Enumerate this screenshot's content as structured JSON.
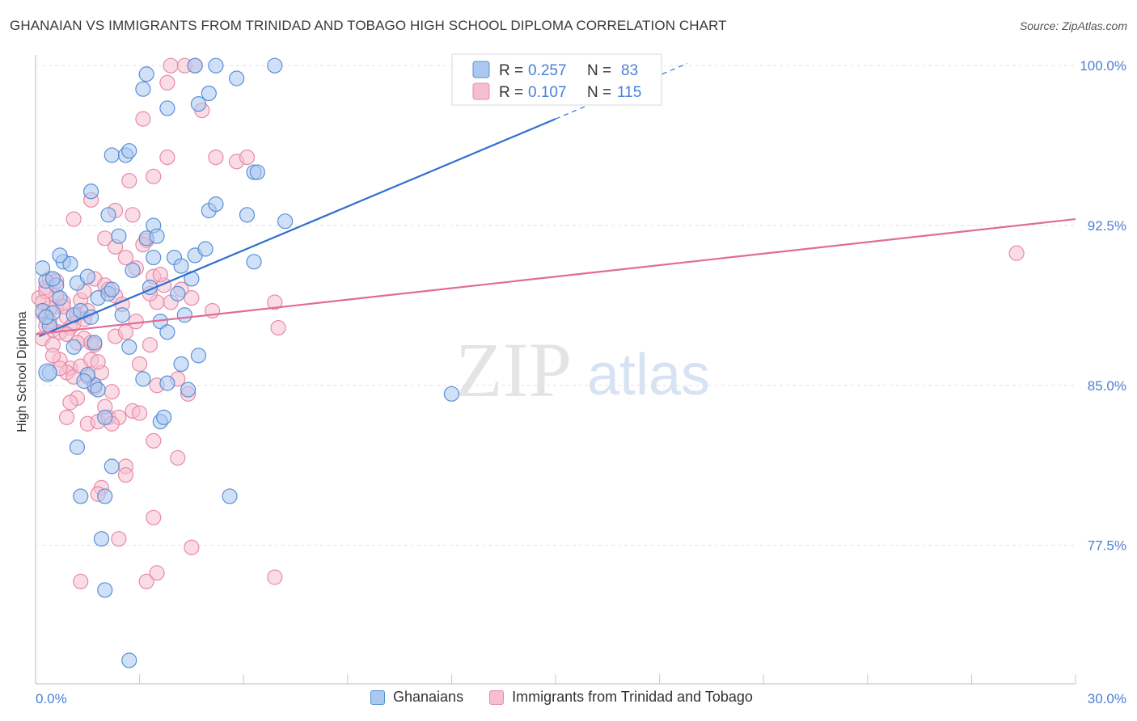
{
  "title": "GHANAIAN VS IMMIGRANTS FROM TRINIDAD AND TOBAGO HIGH SCHOOL DIPLOMA CORRELATION CHART",
  "source": "Source: ZipAtlas.com",
  "watermark": {
    "zip": "ZIP",
    "atlas": "atlas"
  },
  "colors": {
    "blue_fill": "#aac8f0",
    "blue_stroke": "#5a8fd6",
    "blue_line": "#2f6fd0",
    "pink_fill": "#f6bfd0",
    "pink_stroke": "#e88aa8",
    "pink_line": "#e06c98",
    "grid": "#e2e2e2",
    "axis_text": "#4a7fd4"
  },
  "legend_box": {
    "rows": [
      {
        "r_label": "R = ",
        "r_value": "0.257",
        "n_label": "N = ",
        "n_value": "83",
        "color": "blue"
      },
      {
        "r_label": "R = ",
        "r_value": "0.107",
        "n_label": "N = ",
        "n_value": "115",
        "color": "pink"
      }
    ]
  },
  "chart_data": {
    "type": "scatter",
    "title": "GHANAIAN VS IMMIGRANTS FROM TRINIDAD AND TOBAGO HIGH SCHOOL DIPLOMA CORRELATION CHART",
    "xlabel": "",
    "ylabel": "High School Diploma",
    "xlim": [
      0,
      30
    ],
    "ylim": [
      71,
      100.5
    ],
    "x_tick_labels": [
      "0.0%",
      "30.0%"
    ],
    "y_ticks": [
      77.5,
      85.0,
      92.5,
      100.0
    ],
    "y_tick_labels": [
      "77.5%",
      "85.0%",
      "92.5%",
      "100.0%"
    ],
    "legend": [
      "Ghanaians",
      "Immigrants from Trinidad and Tobago"
    ],
    "series": [
      {
        "name": "Ghanaians",
        "color": "blue",
        "trend": {
          "x0": 0.1,
          "y0": 87.3,
          "x1": 15.0,
          "y1": 97.5,
          "dash_to_x": 18.8,
          "dash_to_y": 100.1
        },
        "points": [
          [
            0.3,
            89.9
          ],
          [
            0.2,
            88.5
          ],
          [
            0.4,
            87.8
          ],
          [
            0.5,
            88.4
          ],
          [
            0.2,
            90.5
          ],
          [
            0.6,
            89.7
          ],
          [
            0.3,
            88.2
          ],
          [
            0.7,
            89.1
          ],
          [
            0.4,
            85.6
          ],
          [
            0.8,
            90.8
          ],
          [
            1.0,
            90.7
          ],
          [
            0.5,
            90.0
          ],
          [
            1.1,
            88.3
          ],
          [
            1.2,
            89.8
          ],
          [
            0.7,
            91.1
          ],
          [
            1.5,
            90.1
          ],
          [
            1.1,
            86.8
          ],
          [
            1.3,
            88.5
          ],
          [
            1.6,
            88.2
          ],
          [
            1.8,
            89.1
          ],
          [
            2.1,
            89.3
          ],
          [
            2.5,
            88.3
          ],
          [
            2.7,
            86.8
          ],
          [
            2.4,
            92.0
          ],
          [
            3.2,
            91.9
          ],
          [
            2.8,
            90.4
          ],
          [
            3.3,
            89.6
          ],
          [
            3.4,
            92.5
          ],
          [
            3.5,
            92.0
          ],
          [
            3.4,
            91.0
          ],
          [
            4.0,
            91.0
          ],
          [
            4.2,
            90.6
          ],
          [
            4.3,
            88.3
          ],
          [
            4.1,
            89.3
          ],
          [
            3.6,
            88.0
          ],
          [
            3.8,
            87.5
          ],
          [
            4.5,
            90.0
          ],
          [
            4.6,
            91.1
          ],
          [
            4.9,
            91.4
          ],
          [
            5.0,
            93.2
          ],
          [
            5.2,
            93.5
          ],
          [
            6.1,
            93.0
          ],
          [
            6.3,
            90.8
          ],
          [
            7.2,
            92.7
          ],
          [
            6.3,
            95.0
          ],
          [
            6.4,
            95.0
          ],
          [
            2.2,
            95.8
          ],
          [
            2.6,
            95.8
          ],
          [
            2.7,
            96.0
          ],
          [
            3.1,
            98.9
          ],
          [
            3.2,
            99.6
          ],
          [
            3.8,
            98.0
          ],
          [
            4.7,
            98.2
          ],
          [
            5.0,
            98.7
          ],
          [
            5.2,
            100.0
          ],
          [
            4.6,
            100.0
          ],
          [
            5.8,
            99.4
          ],
          [
            6.9,
            100.0
          ],
          [
            1.6,
            94.1
          ],
          [
            2.1,
            93.0
          ],
          [
            1.7,
            85.0
          ],
          [
            1.5,
            85.5
          ],
          [
            1.4,
            85.2
          ],
          [
            1.8,
            84.8
          ],
          [
            3.1,
            85.3
          ],
          [
            3.8,
            85.1
          ],
          [
            4.2,
            86.0
          ],
          [
            4.4,
            84.8
          ],
          [
            4.7,
            86.4
          ],
          [
            3.6,
            83.3
          ],
          [
            3.7,
            83.5
          ],
          [
            2.0,
            83.5
          ],
          [
            1.2,
            82.1
          ],
          [
            2.2,
            81.2
          ],
          [
            1.3,
            79.8
          ],
          [
            2.0,
            79.8
          ],
          [
            5.6,
            79.8
          ],
          [
            1.9,
            77.8
          ],
          [
            2.0,
            75.4
          ],
          [
            2.7,
            72.1
          ],
          [
            1.7,
            87.0
          ],
          [
            12.0,
            84.6
          ],
          [
            2.2,
            89.5
          ]
        ]
      },
      {
        "name": "Immigrants from Trinidad and Tobago",
        "color": "pink",
        "trend": {
          "x0": 0.0,
          "y0": 87.4,
          "x1": 30.0,
          "y1": 92.8
        },
        "points": [
          [
            0.1,
            89.1
          ],
          [
            0.2,
            88.4
          ],
          [
            0.3,
            87.8
          ],
          [
            0.3,
            89.6
          ],
          [
            0.4,
            88.0
          ],
          [
            0.5,
            87.6
          ],
          [
            0.6,
            88.7
          ],
          [
            0.4,
            90.0
          ],
          [
            0.2,
            87.2
          ],
          [
            0.5,
            86.9
          ],
          [
            0.7,
            87.5
          ],
          [
            0.8,
            88.9
          ],
          [
            0.6,
            89.9
          ],
          [
            0.9,
            88.2
          ],
          [
            1.0,
            87.7
          ],
          [
            0.7,
            86.2
          ],
          [
            1.1,
            87.9
          ],
          [
            1.2,
            88.3
          ],
          [
            1.3,
            89.0
          ],
          [
            1.5,
            88.5
          ],
          [
            1.4,
            87.2
          ],
          [
            1.6,
            87.0
          ],
          [
            1.7,
            86.9
          ],
          [
            1.0,
            85.8
          ],
          [
            0.9,
            85.6
          ],
          [
            1.1,
            85.4
          ],
          [
            1.3,
            85.9
          ],
          [
            1.5,
            85.4
          ],
          [
            1.9,
            85.6
          ],
          [
            1.2,
            84.4
          ],
          [
            1.0,
            84.2
          ],
          [
            0.9,
            83.5
          ],
          [
            1.5,
            83.2
          ],
          [
            1.8,
            83.3
          ],
          [
            2.1,
            83.5
          ],
          [
            2.4,
            83.5
          ],
          [
            2.2,
            83.2
          ],
          [
            2.8,
            83.8
          ],
          [
            2.0,
            84.0
          ],
          [
            1.6,
            86.2
          ],
          [
            1.7,
            90.0
          ],
          [
            2.0,
            89.7
          ],
          [
            2.3,
            89.2
          ],
          [
            2.5,
            88.8
          ],
          [
            2.0,
            91.9
          ],
          [
            2.3,
            91.5
          ],
          [
            2.6,
            91.0
          ],
          [
            2.9,
            90.5
          ],
          [
            3.2,
            91.8
          ],
          [
            3.1,
            91.6
          ],
          [
            3.4,
            90.1
          ],
          [
            3.5,
            88.9
          ],
          [
            3.9,
            88.9
          ],
          [
            3.7,
            89.7
          ],
          [
            4.2,
            89.5
          ],
          [
            4.5,
            89.1
          ],
          [
            2.8,
            93.0
          ],
          [
            1.1,
            92.8
          ],
          [
            1.6,
            93.7
          ],
          [
            2.3,
            93.2
          ],
          [
            3.4,
            94.8
          ],
          [
            2.7,
            94.6
          ],
          [
            3.8,
            95.7
          ],
          [
            5.2,
            95.7
          ],
          [
            5.8,
            95.5
          ],
          [
            6.1,
            95.7
          ],
          [
            3.1,
            97.5
          ],
          [
            3.8,
            99.2
          ],
          [
            4.8,
            97.9
          ],
          [
            3.9,
            100.0
          ],
          [
            4.3,
            100.0
          ],
          [
            4.6,
            100.0
          ],
          [
            2.3,
            87.3
          ],
          [
            2.6,
            87.5
          ],
          [
            3.3,
            86.9
          ],
          [
            3.0,
            86.0
          ],
          [
            3.5,
            85.0
          ],
          [
            4.1,
            85.3
          ],
          [
            4.4,
            84.6
          ],
          [
            3.0,
            83.7
          ],
          [
            3.4,
            82.4
          ],
          [
            4.1,
            81.6
          ],
          [
            2.6,
            81.2
          ],
          [
            2.6,
            80.8
          ],
          [
            1.9,
            80.2
          ],
          [
            1.8,
            79.9
          ],
          [
            3.4,
            78.8
          ],
          [
            2.4,
            77.8
          ],
          [
            4.5,
            77.4
          ],
          [
            1.3,
            75.8
          ],
          [
            3.2,
            75.8
          ],
          [
            3.5,
            76.2
          ],
          [
            6.9,
            76.0
          ],
          [
            5.1,
            88.5
          ],
          [
            6.9,
            88.9
          ],
          [
            7.0,
            87.7
          ],
          [
            3.3,
            89.3
          ],
          [
            1.4,
            89.4
          ],
          [
            0.6,
            89.2
          ],
          [
            0.8,
            88.7
          ],
          [
            0.4,
            88.6
          ],
          [
            0.3,
            89.4
          ],
          [
            0.2,
            88.9
          ],
          [
            0.9,
            87.4
          ],
          [
            1.4,
            88.1
          ],
          [
            1.2,
            87.0
          ],
          [
            2.1,
            89.5
          ],
          [
            0.5,
            86.4
          ],
          [
            28.3,
            91.2
          ],
          [
            1.7,
            84.9
          ],
          [
            2.2,
            84.7
          ],
          [
            0.7,
            85.8
          ],
          [
            3.6,
            90.2
          ],
          [
            1.8,
            86.1
          ],
          [
            2.9,
            88.0
          ]
        ]
      }
    ]
  }
}
